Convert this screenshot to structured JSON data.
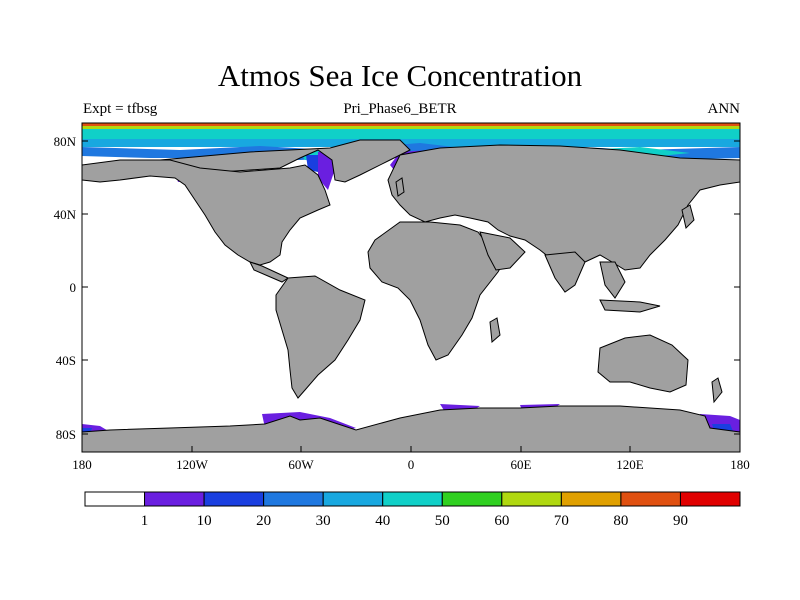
{
  "title": "Atmos Sea Ice Concentration",
  "experiment_label": "Expt = tfbsg",
  "case_name": "Pri_Phase6_BETR",
  "season": "ANN",
  "lat_ticks": [
    "80N",
    "40N",
    "0",
    "40S",
    "80S"
  ],
  "lon_ticks": [
    "180",
    "120W",
    "60W",
    "0",
    "60E",
    "120E",
    "180"
  ],
  "colorbar": {
    "labels": [
      "1",
      "10",
      "20",
      "30",
      "40",
      "50",
      "60",
      "70",
      "80",
      "90"
    ],
    "colors": [
      "#ffffff",
      "#6a1fe0",
      "#1a3fe0",
      "#1f78e0",
      "#18a8e0",
      "#10d0c8",
      "#30d020",
      "#b0d810",
      "#e0a000",
      "#e05010",
      "#e00000"
    ]
  },
  "colors": {
    "land": "#a0a0a0",
    "ocean": "#ffffff"
  }
}
